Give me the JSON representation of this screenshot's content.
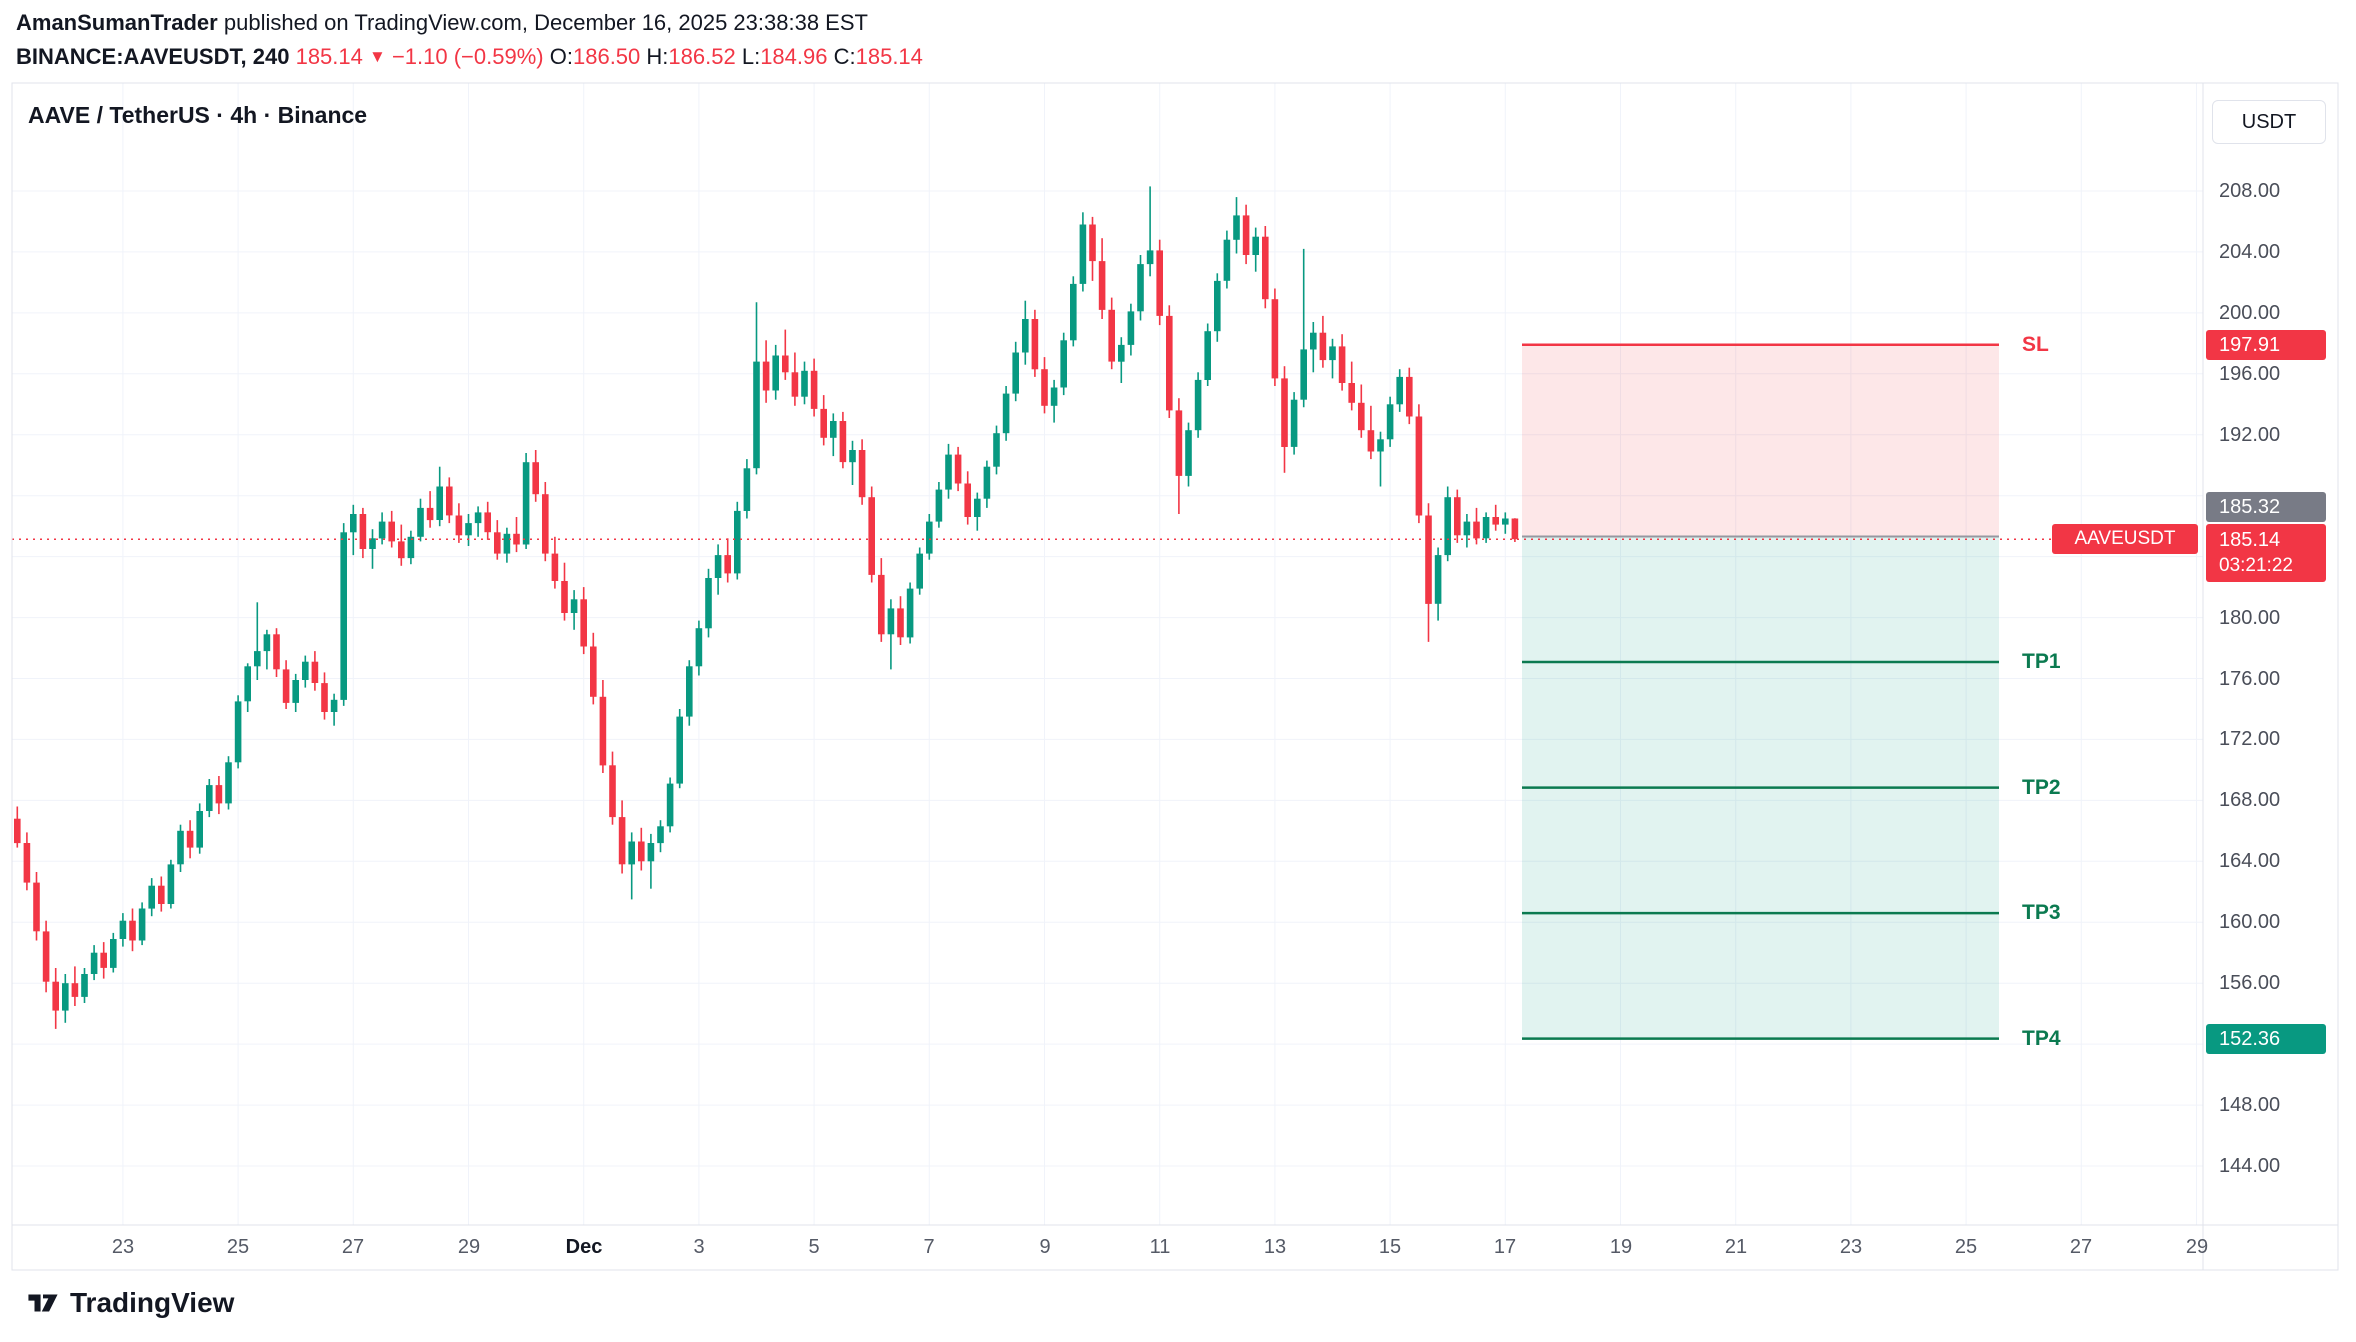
{
  "header": {
    "author": "AmanSumanTrader",
    "publish_text": "published on TradingView.com, December 16, 2025 23:38:38 EST",
    "symbol": "BINANCE:AAVEUSDT,",
    "interval": "240",
    "last": "185.14",
    "direction_icon": "▼",
    "change": "−1.10 (−0.59%)",
    "o_label": "O:",
    "o": "186.50",
    "h_label": "H:",
    "h": "186.52",
    "l_label": "L:",
    "l": "184.96",
    "c_label": "C:",
    "c": "185.14"
  },
  "chart": {
    "title": "AAVE / TetherUS · 4h · Binance",
    "currency_button": "USDT",
    "symbol_tag": "AAVEUSDT",
    "badges": {
      "sl": "197.91",
      "entry": "185.32",
      "last": "185.14",
      "countdown": "03:21:22",
      "tp4": "152.36"
    },
    "trade_labels": {
      "sl": "SL",
      "tp1": "TP1",
      "tp2": "TP2",
      "tp3": "TP3",
      "tp4": "TP4"
    },
    "price_axis": {
      "visible_ticks": [
        208,
        204,
        200,
        196,
        192,
        180,
        176,
        172,
        168,
        164,
        160,
        156,
        148,
        144
      ]
    },
    "time_axis": {
      "labels": [
        {
          "t": "23",
          "b": false
        },
        {
          "t": "25",
          "b": false
        },
        {
          "t": "27",
          "b": false
        },
        {
          "t": "29",
          "b": false
        },
        {
          "t": "Dec",
          "b": true
        },
        {
          "t": "3",
          "b": false
        },
        {
          "t": "5",
          "b": false
        },
        {
          "t": "7",
          "b": false
        },
        {
          "t": "9",
          "b": false
        },
        {
          "t": "11",
          "b": false
        },
        {
          "t": "13",
          "b": false
        },
        {
          "t": "15",
          "b": false
        },
        {
          "t": "17",
          "b": false
        },
        {
          "t": "19",
          "b": false
        },
        {
          "t": "21",
          "b": false
        },
        {
          "t": "23",
          "b": false
        },
        {
          "t": "25",
          "b": false
        },
        {
          "t": "27",
          "b": false
        },
        {
          "t": "29",
          "b": false
        }
      ]
    }
  },
  "footer": {
    "logo_text": "TradingView"
  },
  "chart_data": {
    "type": "candlestick",
    "title": "AAVE / TetherUS · 4h · Binance",
    "symbol": "BINANCE:AAVEUSDT",
    "interval": "4h",
    "ylim": [
      144,
      208
    ],
    "y_step": 4,
    "grid": true,
    "last_price": 185.14,
    "last_candle": {
      "open": 186.5,
      "high": 186.52,
      "low": 184.96,
      "close": 185.14
    },
    "countdown": "03:21:22",
    "trade_tool": {
      "direction": "short",
      "entry": 185.32,
      "stop": 197.91,
      "targets": [
        177.08,
        168.84,
        160.6,
        152.36
      ],
      "stop_label": "SL",
      "target_labels": [
        "TP1",
        "TP2",
        "TP3",
        "TP4"
      ]
    },
    "colors": {
      "up": "#089981",
      "down": "#f23645",
      "stop_line": "#f23645",
      "target_line": "#0b7a50",
      "entry_line": "#9598a1",
      "stop_zone_fill": "rgba(242,54,69,0.12)",
      "profit_zone_fill": "rgba(8,153,129,0.12)"
    },
    "candles": [
      [
        166.8,
        167.6,
        164.9,
        165.2
      ],
      [
        165.2,
        165.9,
        162.1,
        162.6
      ],
      [
        162.6,
        163.3,
        158.8,
        159.4
      ],
      [
        159.4,
        160.1,
        155.4,
        156.1
      ],
      [
        156.1,
        157.0,
        153.0,
        154.2
      ],
      [
        154.2,
        156.6,
        153.4,
        156.0
      ],
      [
        156.0,
        157.1,
        154.5,
        155.1
      ],
      [
        155.1,
        157.0,
        154.7,
        156.6
      ],
      [
        156.6,
        158.5,
        156.2,
        158.0
      ],
      [
        158.0,
        158.7,
        156.3,
        157.0
      ],
      [
        157.0,
        159.3,
        156.7,
        158.9
      ],
      [
        158.9,
        160.6,
        158.4,
        160.1
      ],
      [
        160.1,
        160.9,
        158.1,
        158.8
      ],
      [
        158.8,
        161.3,
        158.5,
        160.9
      ],
      [
        160.9,
        162.9,
        160.4,
        162.4
      ],
      [
        162.4,
        163.0,
        160.7,
        161.2
      ],
      [
        161.2,
        164.1,
        160.9,
        163.8
      ],
      [
        163.8,
        166.4,
        163.3,
        166.0
      ],
      [
        166.0,
        166.7,
        164.2,
        164.9
      ],
      [
        164.9,
        167.8,
        164.5,
        167.3
      ],
      [
        167.3,
        169.4,
        166.9,
        169.0
      ],
      [
        169.0,
        169.6,
        167.1,
        167.8
      ],
      [
        167.8,
        170.9,
        167.4,
        170.5
      ],
      [
        170.5,
        174.9,
        170.1,
        174.5
      ],
      [
        174.5,
        177.0,
        173.8,
        176.8
      ],
      [
        176.8,
        181.0,
        175.9,
        177.8
      ],
      [
        177.8,
        179.2,
        176.6,
        178.9
      ],
      [
        178.9,
        179.3,
        176.1,
        176.6
      ],
      [
        176.6,
        177.2,
        174.0,
        174.4
      ],
      [
        174.4,
        176.3,
        173.8,
        175.9
      ],
      [
        175.9,
        177.5,
        175.4,
        177.1
      ],
      [
        177.1,
        177.8,
        175.2,
        175.7
      ],
      [
        175.7,
        176.4,
        173.3,
        173.8
      ],
      [
        173.8,
        175.0,
        172.9,
        174.6
      ],
      [
        174.6,
        186.2,
        174.2,
        185.6
      ],
      [
        185.6,
        187.4,
        184.1,
        186.8
      ],
      [
        186.8,
        187.2,
        183.9,
        184.5
      ],
      [
        184.5,
        185.8,
        183.2,
        185.2
      ],
      [
        185.2,
        186.9,
        184.8,
        186.3
      ],
      [
        186.3,
        187.0,
        184.6,
        185.0
      ],
      [
        185.0,
        186.1,
        183.4,
        183.9
      ],
      [
        183.9,
        185.7,
        183.5,
        185.3
      ],
      [
        185.3,
        187.8,
        185.0,
        187.2
      ],
      [
        187.2,
        188.3,
        185.9,
        186.4
      ],
      [
        186.4,
        189.9,
        186.0,
        188.6
      ],
      [
        188.6,
        189.2,
        186.2,
        186.7
      ],
      [
        186.7,
        187.5,
        184.9,
        185.4
      ],
      [
        185.4,
        186.8,
        184.7,
        186.2
      ],
      [
        186.2,
        187.3,
        185.3,
        186.9
      ],
      [
        186.9,
        187.6,
        185.1,
        185.6
      ],
      [
        185.6,
        186.4,
        183.8,
        184.2
      ],
      [
        184.2,
        185.9,
        183.6,
        185.5
      ],
      [
        185.5,
        186.6,
        184.3,
        184.8
      ],
      [
        184.8,
        190.8,
        184.5,
        190.2
      ],
      [
        190.2,
        191.0,
        187.6,
        188.1
      ],
      [
        188.1,
        188.9,
        183.7,
        184.2
      ],
      [
        184.2,
        185.3,
        181.9,
        182.4
      ],
      [
        182.4,
        183.6,
        179.8,
        180.3
      ],
      [
        180.3,
        181.8,
        179.2,
        181.2
      ],
      [
        181.2,
        182.0,
        177.6,
        178.1
      ],
      [
        178.1,
        179.0,
        174.3,
        174.8
      ],
      [
        174.8,
        175.9,
        169.8,
        170.3
      ],
      [
        170.3,
        171.2,
        166.4,
        166.9
      ],
      [
        166.9,
        168.0,
        163.2,
        163.8
      ],
      [
        163.8,
        165.9,
        161.5,
        165.3
      ],
      [
        165.3,
        166.2,
        163.4,
        164.0
      ],
      [
        164.0,
        165.8,
        162.2,
        165.2
      ],
      [
        165.2,
        166.7,
        164.6,
        166.3
      ],
      [
        166.3,
        169.5,
        165.9,
        169.1
      ],
      [
        169.1,
        174.0,
        168.8,
        173.5
      ],
      [
        173.5,
        177.2,
        172.9,
        176.8
      ],
      [
        176.8,
        179.8,
        176.2,
        179.3
      ],
      [
        179.3,
        183.2,
        178.7,
        182.6
      ],
      [
        182.6,
        184.8,
        181.5,
        184.1
      ],
      [
        184.1,
        185.2,
        182.3,
        182.9
      ],
      [
        182.9,
        187.6,
        182.5,
        187.0
      ],
      [
        187.0,
        190.4,
        186.5,
        189.8
      ],
      [
        189.8,
        200.7,
        189.4,
        196.8
      ],
      [
        196.8,
        198.2,
        194.1,
        194.9
      ],
      [
        194.9,
        197.9,
        194.3,
        197.2
      ],
      [
        197.2,
        198.9,
        195.6,
        196.1
      ],
      [
        196.1,
        197.4,
        193.9,
        194.5
      ],
      [
        194.5,
        196.8,
        194.0,
        196.2
      ],
      [
        196.2,
        197.0,
        193.2,
        193.7
      ],
      [
        193.7,
        194.6,
        191.3,
        191.8
      ],
      [
        191.8,
        193.4,
        190.6,
        192.9
      ],
      [
        192.9,
        193.5,
        189.8,
        190.2
      ],
      [
        190.2,
        191.6,
        188.7,
        191.0
      ],
      [
        191.0,
        191.7,
        187.4,
        187.9
      ],
      [
        187.9,
        188.6,
        182.3,
        182.8
      ],
      [
        182.8,
        183.9,
        178.4,
        178.9
      ],
      [
        178.9,
        181.2,
        176.6,
        180.6
      ],
      [
        180.6,
        181.4,
        178.2,
        178.7
      ],
      [
        178.7,
        182.3,
        178.3,
        181.9
      ],
      [
        181.9,
        184.6,
        181.5,
        184.2
      ],
      [
        184.2,
        186.8,
        183.8,
        186.3
      ],
      [
        186.3,
        188.9,
        185.9,
        188.4
      ],
      [
        188.4,
        191.4,
        187.8,
        190.7
      ],
      [
        190.7,
        191.2,
        188.3,
        188.8
      ],
      [
        188.8,
        189.6,
        186.1,
        186.6
      ],
      [
        186.6,
        188.2,
        185.7,
        187.8
      ],
      [
        187.8,
        190.3,
        187.2,
        189.9
      ],
      [
        189.9,
        192.6,
        189.4,
        192.1
      ],
      [
        192.1,
        195.2,
        191.6,
        194.7
      ],
      [
        194.7,
        198.1,
        194.2,
        197.4
      ],
      [
        197.4,
        200.8,
        196.6,
        199.6
      ],
      [
        199.6,
        200.2,
        195.8,
        196.3
      ],
      [
        196.3,
        197.1,
        193.4,
        193.9
      ],
      [
        193.9,
        195.6,
        192.8,
        195.1
      ],
      [
        195.1,
        198.7,
        194.6,
        198.2
      ],
      [
        198.2,
        202.4,
        197.8,
        201.9
      ],
      [
        201.9,
        206.6,
        201.4,
        205.8
      ],
      [
        205.8,
        206.3,
        202.1,
        203.4
      ],
      [
        203.4,
        204.9,
        199.6,
        200.2
      ],
      [
        200.2,
        201.0,
        196.3,
        196.8
      ],
      [
        196.8,
        198.4,
        195.4,
        197.9
      ],
      [
        197.9,
        200.6,
        197.2,
        200.1
      ],
      [
        200.1,
        203.8,
        199.5,
        203.2
      ],
      [
        203.2,
        208.3,
        202.4,
        204.1
      ],
      [
        204.1,
        204.8,
        199.2,
        199.8
      ],
      [
        199.8,
        200.5,
        193.1,
        193.6
      ],
      [
        193.6,
        194.4,
        186.8,
        189.3
      ],
      [
        189.3,
        192.8,
        188.6,
        192.3
      ],
      [
        192.3,
        196.1,
        191.8,
        195.6
      ],
      [
        195.6,
        199.3,
        195.2,
        198.8
      ],
      [
        198.8,
        202.6,
        198.1,
        202.1
      ],
      [
        202.1,
        205.4,
        201.6,
        204.8
      ],
      [
        204.8,
        207.6,
        203.9,
        206.4
      ],
      [
        206.4,
        207.1,
        203.2,
        203.8
      ],
      [
        203.8,
        205.6,
        202.7,
        205.0
      ],
      [
        205.0,
        205.7,
        200.3,
        200.9
      ],
      [
        200.9,
        201.6,
        195.2,
        195.7
      ],
      [
        195.7,
        196.5,
        189.5,
        191.2
      ],
      [
        191.2,
        194.8,
        190.7,
        194.3
      ],
      [
        194.3,
        204.2,
        193.8,
        197.6
      ],
      [
        197.6,
        199.4,
        196.1,
        198.7
      ],
      [
        198.7,
        199.8,
        196.4,
        196.9
      ],
      [
        196.9,
        198.3,
        195.7,
        197.8
      ],
      [
        197.8,
        198.6,
        194.9,
        195.4
      ],
      [
        195.4,
        196.8,
        193.6,
        194.1
      ],
      [
        194.1,
        195.3,
        191.8,
        192.3
      ],
      [
        192.3,
        193.9,
        190.4,
        190.9
      ],
      [
        190.9,
        192.2,
        188.6,
        191.7
      ],
      [
        191.7,
        194.5,
        191.2,
        194.0
      ],
      [
        194.0,
        196.3,
        193.5,
        195.8
      ],
      [
        195.8,
        196.4,
        192.7,
        193.2
      ],
      [
        193.2,
        194.0,
        186.2,
        186.7
      ],
      [
        186.7,
        187.5,
        178.4,
        180.9
      ],
      [
        180.9,
        184.6,
        179.8,
        184.1
      ],
      [
        184.1,
        188.6,
        183.7,
        187.9
      ],
      [
        187.9,
        188.4,
        184.9,
        185.4
      ],
      [
        185.4,
        186.8,
        184.6,
        186.3
      ],
      [
        186.3,
        187.2,
        184.8,
        185.2
      ],
      [
        185.2,
        186.9,
        184.9,
        186.6
      ],
      [
        186.6,
        187.4,
        185.7,
        186.1
      ],
      [
        186.1,
        186.9,
        185.5,
        186.5
      ],
      [
        186.5,
        186.52,
        184.96,
        185.14
      ]
    ]
  }
}
